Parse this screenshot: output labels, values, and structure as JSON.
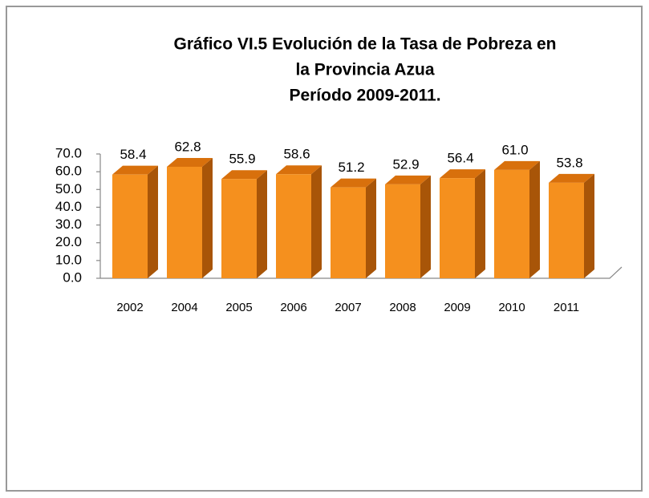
{
  "chart_data": {
    "type": "bar3d",
    "title": [
      "Gráfico VI.5 Evolución de la Tasa de Pobreza en",
      "la Provincia Azua",
      "Período 2009-2011."
    ],
    "categories": [
      "2002",
      "2004",
      "2005",
      "2006",
      "2007",
      "2008",
      "2009",
      "2010",
      "2011"
    ],
    "values": [
      58.4,
      62.8,
      55.9,
      58.6,
      51.2,
      52.9,
      56.4,
      61.0,
      53.8
    ],
    "value_labels": [
      "58.4",
      "62.8",
      "55.9",
      "58.6",
      "51.2",
      "52.9",
      "56.4",
      "61.0",
      "53.8"
    ],
    "color": "#f5901e",
    "ylim": [
      0,
      70
    ],
    "yticks": [
      {
        "value": 0,
        "label": "0.0"
      },
      {
        "value": 10,
        "label": "10.0"
      },
      {
        "value": 20,
        "label": "20.0"
      },
      {
        "value": 30,
        "label": "30.0"
      },
      {
        "value": 40,
        "label": "40.0"
      },
      {
        "value": 50,
        "label": "50.0"
      },
      {
        "value": 60,
        "label": "60.0"
      },
      {
        "value": 70,
        "label": "70.0"
      }
    ],
    "grid": false
  }
}
